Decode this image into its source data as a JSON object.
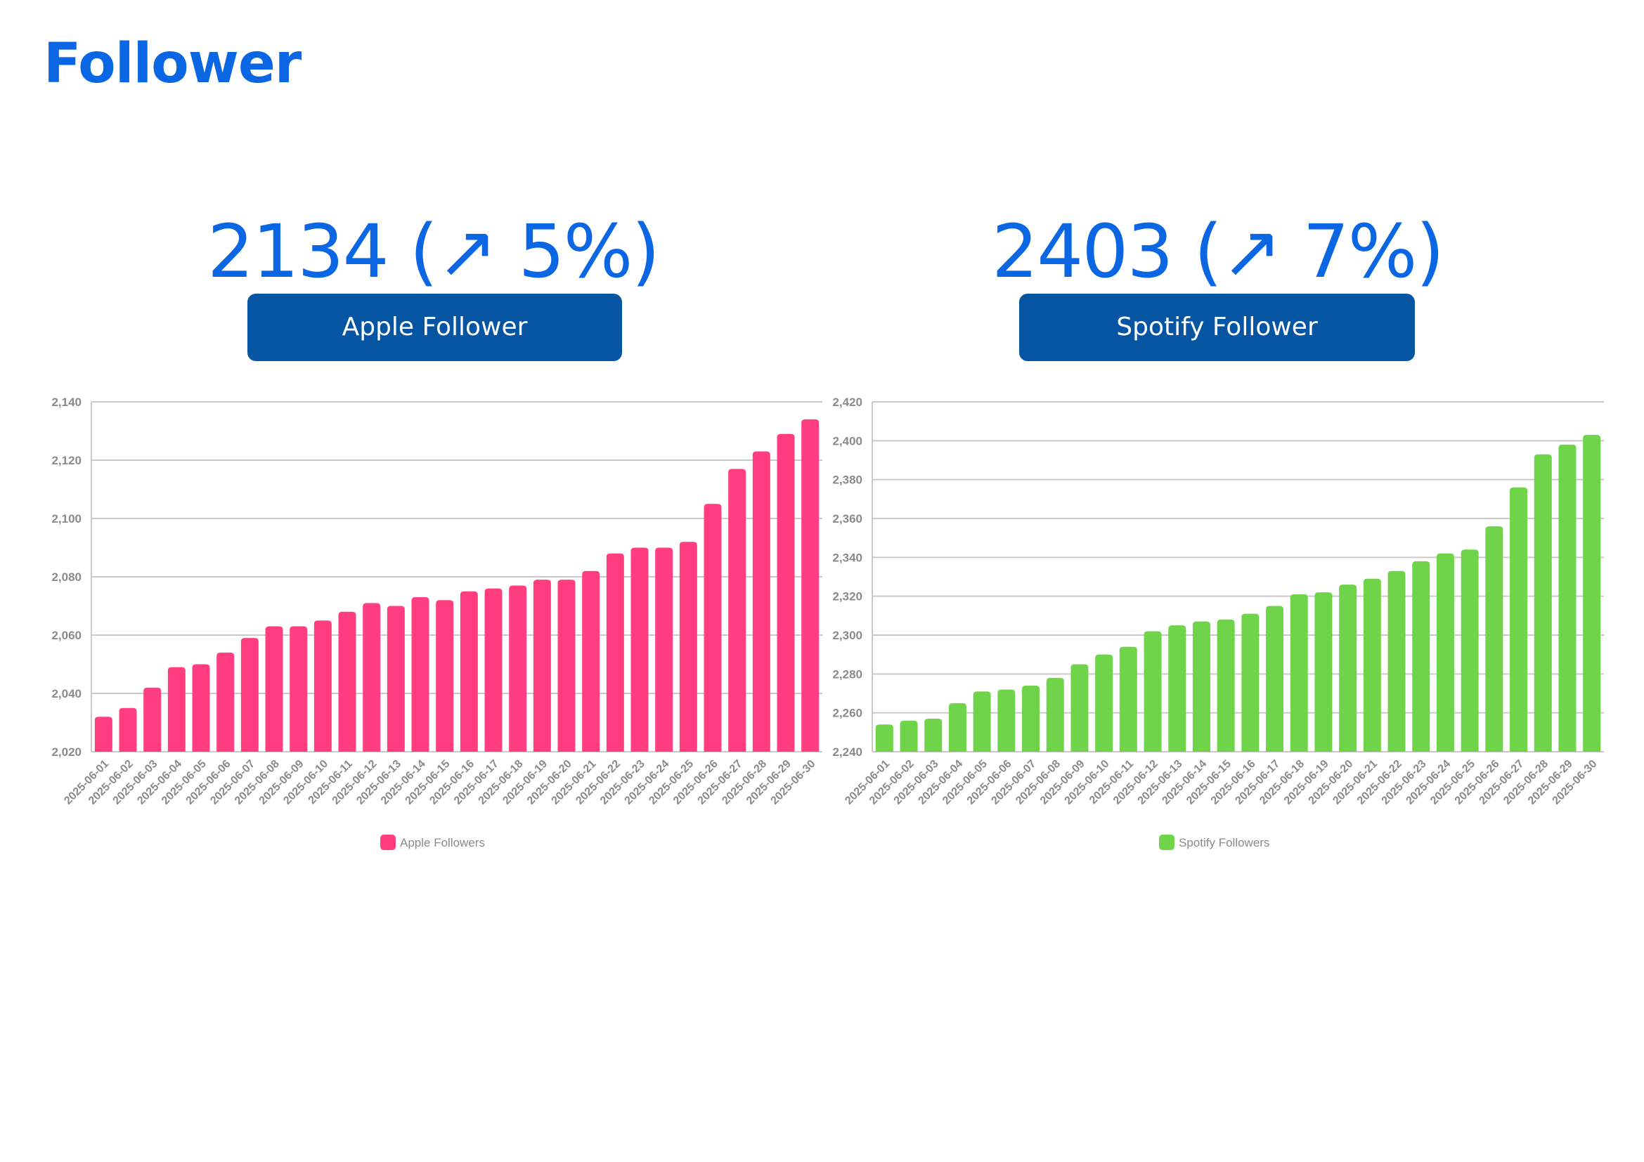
{
  "page": {
    "title": "Follower"
  },
  "kpis": [
    {
      "value_text": "2134 (↗ 5%)",
      "label": "Apple Follower"
    },
    {
      "value_text": "2403 (↗ 7%)",
      "label": "Spotify Follower"
    }
  ],
  "colors": {
    "title": "#0a66e2",
    "kpi_label_bg": "#0555a3",
    "apple": "#ff3d80",
    "spotify": "#6fd44a",
    "grid": "#c9c9c9",
    "axis_text": "#8a8a8a"
  },
  "chart_data": [
    {
      "type": "bar",
      "categories": [
        "2025-06-01",
        "2025-06-02",
        "2025-06-03",
        "2025-06-04",
        "2025-06-05",
        "2025-06-06",
        "2025-06-07",
        "2025-06-08",
        "2025-06-09",
        "2025-06-10",
        "2025-06-11",
        "2025-06-12",
        "2025-06-13",
        "2025-06-14",
        "2025-06-15",
        "2025-06-16",
        "2025-06-17",
        "2025-06-18",
        "2025-06-19",
        "2025-06-20",
        "2025-06-21",
        "2025-06-22",
        "2025-06-23",
        "2025-06-24",
        "2025-06-25",
        "2025-06-26",
        "2025-06-27",
        "2025-06-28",
        "2025-06-29",
        "2025-06-30"
      ],
      "series": [
        {
          "name": "Apple Followers",
          "color": "#ff3d80",
          "values": [
            2032,
            2035,
            2042,
            2049,
            2050,
            2054,
            2059,
            2063,
            2063,
            2065,
            2068,
            2071,
            2070,
            2073,
            2072,
            2075,
            2076,
            2077,
            2079,
            2079,
            2082,
            2088,
            2090,
            2090,
            2092,
            2105,
            2117,
            2123,
            2129,
            2134
          ]
        }
      ],
      "ylim": [
        2020,
        2140
      ],
      "yticks": [
        2020,
        2040,
        2060,
        2080,
        2100,
        2120,
        2140
      ],
      "ytick_labels": [
        "2,020",
        "2,040",
        "2,060",
        "2,080",
        "2,100",
        "2,120",
        "2,140"
      ],
      "grid": true,
      "legend": "bottom"
    },
    {
      "type": "bar",
      "categories": [
        "2025-06-01",
        "2025-06-02",
        "2025-06-03",
        "2025-06-04",
        "2025-06-05",
        "2025-06-06",
        "2025-06-07",
        "2025-06-08",
        "2025-06-09",
        "2025-06-10",
        "2025-06-11",
        "2025-06-12",
        "2025-06-13",
        "2025-06-14",
        "2025-06-15",
        "2025-06-16",
        "2025-06-17",
        "2025-06-18",
        "2025-06-19",
        "2025-06-20",
        "2025-06-21",
        "2025-06-22",
        "2025-06-23",
        "2025-06-24",
        "2025-06-25",
        "2025-06-26",
        "2025-06-27",
        "2025-06-28",
        "2025-06-29",
        "2025-06-30"
      ],
      "series": [
        {
          "name": "Spotify Followers",
          "color": "#6fd44a",
          "values": [
            2254,
            2256,
            2257,
            2265,
            2271,
            2272,
            2274,
            2278,
            2285,
            2290,
            2294,
            2302,
            2305,
            2307,
            2308,
            2311,
            2315,
            2321,
            2322,
            2326,
            2329,
            2333,
            2338,
            2342,
            2344,
            2356,
            2376,
            2393,
            2398,
            2403
          ]
        }
      ],
      "ylim": [
        2240,
        2420
      ],
      "yticks": [
        2240,
        2260,
        2280,
        2300,
        2320,
        2340,
        2360,
        2380,
        2400,
        2420
      ],
      "ytick_labels": [
        "2,240",
        "2,260",
        "2,280",
        "2,300",
        "2,320",
        "2,340",
        "2,360",
        "2,380",
        "2,400",
        "2,420"
      ],
      "grid": true,
      "legend": "bottom"
    }
  ]
}
